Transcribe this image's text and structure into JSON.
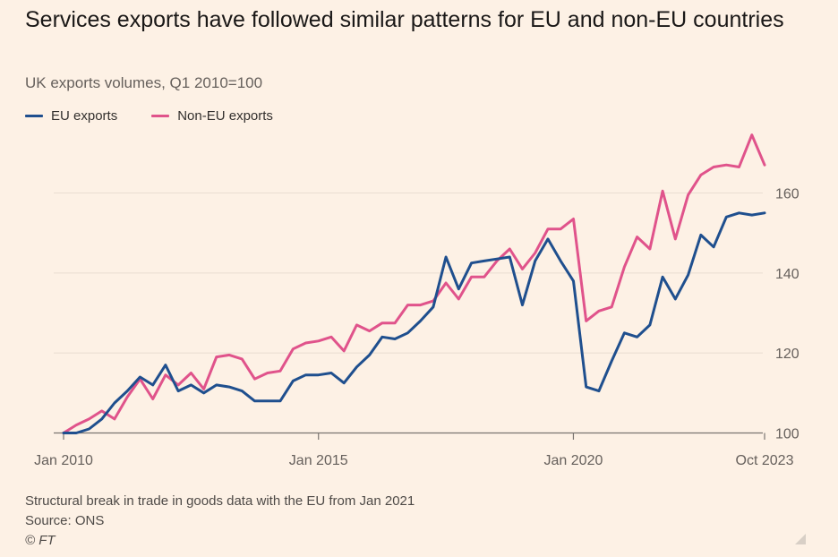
{
  "header": {
    "title": "Services exports have followed similar patterns for EU and non-EU countries",
    "subtitle": "UK exports volumes, Q1 2010=100"
  },
  "legend": [
    {
      "label": "EU exports",
      "color": "#1f4f8e"
    },
    {
      "label": "Non-EU exports",
      "color": "#e0538b"
    }
  ],
  "footer": {
    "note": "Structural break in trade in goods data with the EU from Jan 2021",
    "source": "Source: ONS",
    "copyright": "© FT"
  },
  "chart_data": {
    "type": "line",
    "title": "Services exports have followed similar patterns for EU and non-EU countries",
    "subtitle": "UK exports volumes, Q1 2010=100",
    "xlabel": "",
    "ylabel": "",
    "x_tick_labels": [
      "Jan 2010",
      "Jan 2015",
      "Jan 2020",
      "Oct 2023"
    ],
    "y_ticks": [
      100,
      120,
      140,
      160
    ],
    "ylim": [
      100,
      175
    ],
    "x_range": [
      "2010 Q1",
      "2023 Q4"
    ],
    "grid": true,
    "y_axis_position": "right",
    "legend_position": "top-left",
    "x": [
      "2010 Q1",
      "2010 Q2",
      "2010 Q3",
      "2010 Q4",
      "2011 Q1",
      "2011 Q2",
      "2011 Q3",
      "2011 Q4",
      "2012 Q1",
      "2012 Q2",
      "2012 Q3",
      "2012 Q4",
      "2013 Q1",
      "2013 Q2",
      "2013 Q3",
      "2013 Q4",
      "2014 Q1",
      "2014 Q2",
      "2014 Q3",
      "2014 Q4",
      "2015 Q1",
      "2015 Q2",
      "2015 Q3",
      "2015 Q4",
      "2016 Q1",
      "2016 Q2",
      "2016 Q3",
      "2016 Q4",
      "2017 Q1",
      "2017 Q2",
      "2017 Q3",
      "2017 Q4",
      "2018 Q1",
      "2018 Q2",
      "2018 Q3",
      "2018 Q4",
      "2019 Q1",
      "2019 Q2",
      "2019 Q3",
      "2019 Q4",
      "2020 Q1",
      "2020 Q2",
      "2020 Q3",
      "2020 Q4",
      "2021 Q1",
      "2021 Q2",
      "2021 Q3",
      "2021 Q4",
      "2022 Q1",
      "2022 Q2",
      "2022 Q3",
      "2022 Q4",
      "2023 Q1",
      "2023 Q2",
      "2023 Q3",
      "2023 Q4"
    ],
    "series": [
      {
        "name": "EU exports",
        "color": "#1f4f8e",
        "values": [
          100,
          100,
          101,
          103.5,
          107.5,
          110.5,
          114,
          112,
          117,
          110.5,
          112,
          110,
          112,
          111.5,
          110.5,
          108,
          108,
          108,
          113,
          114.5,
          114.5,
          115,
          112.5,
          116.5,
          119.5,
          124,
          123.5,
          125,
          128,
          131.5,
          144,
          136,
          142.5,
          143,
          143.5,
          144,
          132,
          143,
          148.5,
          143,
          138,
          111.5,
          110.5,
          118,
          125,
          124,
          127,
          139,
          133.5,
          139.5,
          149.5,
          146.5,
          154,
          155,
          154.5,
          155
        ]
      },
      {
        "name": "Non-EU exports",
        "color": "#e0538b",
        "values": [
          100,
          102,
          103.5,
          105.5,
          103.5,
          109,
          113.5,
          108.5,
          114.5,
          112,
          115,
          111,
          119,
          119.5,
          118.5,
          113.5,
          115,
          115.5,
          121,
          122.5,
          123,
          124,
          120.5,
          127,
          125.5,
          127.5,
          127.5,
          132,
          132,
          133,
          137.5,
          133.5,
          139,
          139,
          143,
          146,
          141,
          145,
          151,
          151,
          153.5,
          128,
          130.5,
          131.5,
          141.5,
          149,
          146,
          160.5,
          148.5,
          159.5,
          164.5,
          166.5,
          167,
          166.5,
          174.5,
          167
        ]
      }
    ]
  }
}
